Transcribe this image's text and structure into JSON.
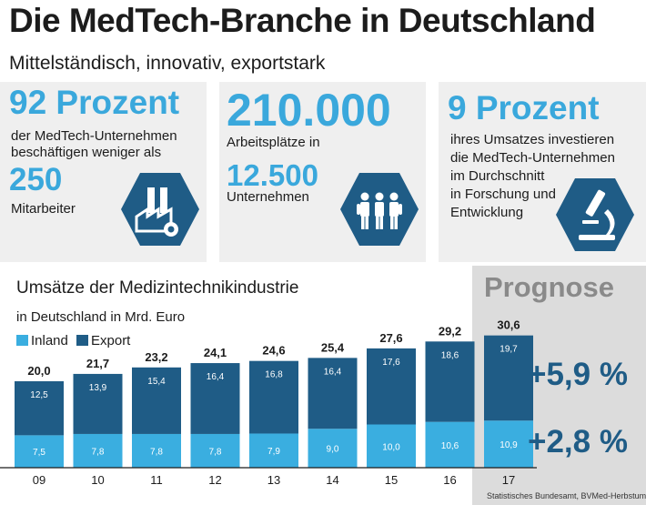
{
  "header": {
    "title": "Die MedTech-Branche in Deutschland",
    "subtitle": "Mittelständisch, innovativ, exportstark"
  },
  "facts": [
    {
      "big": "92 Prozent",
      "lines": [
        "der MedTech-Unternehmen",
        "beschäftigen weniger als"
      ],
      "big2": "250",
      "line2": "Mitarbeiter",
      "icon": "factory-icon"
    },
    {
      "big": "210.000",
      "lines": [
        "Arbeitsplätze in"
      ],
      "big2": "12.500",
      "line2": "Unternehmen",
      "icon": "people-icon"
    },
    {
      "big": "9 Prozent",
      "lines": [
        "ihres Umsatzes investieren",
        "die MedTech-Unternehmen",
        "im Durchschnitt",
        "in Forschung und",
        "Entwicklung"
      ],
      "icon": "microscope-icon"
    }
  ],
  "colors": {
    "inland": "#3aaee0",
    "export": "#1f5c86",
    "accent": "#3aa8dc",
    "hexagon": "#1f5c86"
  },
  "chart_data": {
    "type": "bar",
    "stacked": true,
    "title": "Umsätze der Medizintechnikindustrie",
    "subtitle": "in Deutschland in Mrd. Euro",
    "categories": [
      "09",
      "10",
      "11",
      "12",
      "13",
      "14",
      "15",
      "16",
      "17"
    ],
    "series": [
      {
        "name": "Inland",
        "values": [
          7.5,
          7.8,
          7.8,
          7.8,
          7.9,
          9.0,
          10.0,
          10.6,
          10.9
        ]
      },
      {
        "name": "Export",
        "values": [
          12.5,
          13.9,
          15.4,
          16.4,
          16.8,
          16.4,
          17.6,
          18.6,
          19.7
        ]
      }
    ],
    "inland_labels": [
      "7,5",
      "7,8",
      "7,8",
      "7,8",
      "7,9",
      "9,0",
      "10,0",
      "10,6",
      "10,9"
    ],
    "export_labels": [
      "12,5",
      "13,9",
      "15,4",
      "16,4",
      "16,8",
      "16,4",
      "17,6",
      "18,6",
      "19,7"
    ],
    "totals": [
      20.0,
      21.7,
      23.2,
      24.1,
      24.6,
      25.4,
      27.6,
      29.2,
      30.6
    ],
    "total_labels": [
      "20,0",
      "21,7",
      "23,2",
      "24,1",
      "24,6",
      "25,4",
      "27,6",
      "29,2",
      "30,6"
    ],
    "legend": [
      "Inland",
      "Export"
    ],
    "legend_position": "top-left",
    "ylim": [
      0,
      31
    ],
    "grid": false,
    "forecast": {
      "label": "Prognose",
      "category": "17",
      "export_growth": "+5,9 %",
      "inland_growth": "+2,8 %"
    },
    "source": "Statistisches Bundesamt, BVMed-Herbstumfrage"
  }
}
